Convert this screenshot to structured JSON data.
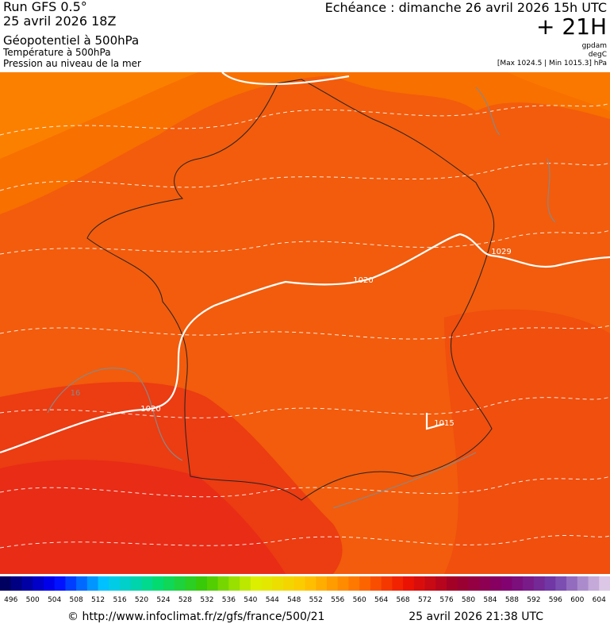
{
  "header": {
    "run": "Run GFS 0.5°",
    "run_date": "25 avril 2026 18Z",
    "field": "Géopotentiel à 500hPa",
    "temperature": "Température à 500hPa",
    "pressure": "Pression au niveau de la mer",
    "forecast": "Echéance : dimanche 26 avril 2026 15h UTC",
    "lead": "+ 21H",
    "units": [
      "gpdam",
      "degC",
      "[Max 1024.5 | Min 1015.3] hPa"
    ]
  },
  "map": {
    "contour_labels": [
      "1029",
      "1020",
      "1020",
      "1015",
      "16"
    ]
  },
  "scale": {
    "labels": [
      496,
      500,
      504,
      508,
      512,
      516,
      520,
      524,
      528,
      532,
      536,
      540,
      544,
      548,
      552,
      556,
      560,
      564,
      568,
      572,
      576,
      580,
      584,
      588,
      592,
      596,
      600,
      604
    ]
  },
  "footer": {
    "source": "© http://www.infoclimat.fr/z/gfs/france/500/21",
    "generated": "25 avril 2026 21:38 UTC"
  }
}
